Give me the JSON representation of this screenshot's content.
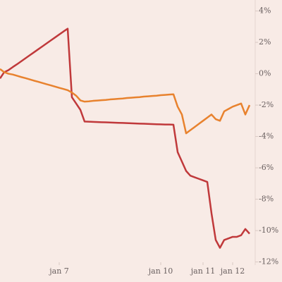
{
  "chart_data": {
    "type": "line",
    "categories": [
      null,
      null,
      null,
      null,
      null,
      null,
      null,
      null,
      null,
      null,
      null,
      null,
      null,
      null,
      "jan 7",
      null,
      null,
      null,
      null,
      null,
      null,
      null,
      null,
      null,
      null,
      null,
      null,
      null,
      null,
      null,
      null,
      null,
      null,
      null,
      null,
      null,
      null,
      null,
      "jan 10",
      null,
      null,
      null,
      null,
      null,
      null,
      null,
      null,
      null,
      "jan 11",
      null,
      null,
      null,
      null,
      null,
      null,
      "jan 12",
      null,
      null,
      null,
      null,
      null
    ],
    "series": [
      {
        "color": "#c0393b",
        "values": [
          -0.3,
          0.1,
          0.23,
          0.42,
          0.6,
          0.79,
          0.98,
          1.17,
          1.36,
          1.55,
          1.74,
          1.93,
          2.12,
          2.31,
          2.5,
          2.69,
          2.87,
          -1.5,
          -1.9,
          -2.3,
          -3.05,
          -3.06,
          -3.07,
          -3.08,
          -3.09,
          -3.1,
          -3.11,
          -3.12,
          -3.13,
          -3.14,
          -3.15,
          -3.16,
          -3.17,
          -3.18,
          -3.19,
          -3.2,
          -3.21,
          -3.22,
          -3.23,
          -3.24,
          -3.24,
          -3.25,
          -5.0,
          -5.6,
          -6.2,
          -6.5,
          -6.6,
          -6.7,
          -6.8,
          -6.9,
          -8.9,
          -10.6,
          -11.1,
          -10.6,
          -10.5,
          -10.4,
          -10.4,
          -10.3,
          -9.9,
          -10.2,
          null
        ]
      },
      {
        "color": "#e8822e",
        "values": [
          0.3,
          0.1,
          0.0,
          -0.05,
          -0.13,
          -0.21,
          -0.28,
          -0.36,
          -0.44,
          -0.51,
          -0.59,
          -0.67,
          -0.74,
          -0.82,
          -0.9,
          -0.97,
          -1.05,
          -1.2,
          -1.4,
          -1.7,
          -1.78,
          -1.76,
          -1.73,
          -1.71,
          -1.69,
          -1.67,
          -1.64,
          -1.62,
          -1.6,
          -1.58,
          -1.55,
          -1.53,
          -1.51,
          -1.49,
          -1.46,
          -1.44,
          -1.42,
          -1.4,
          -1.37,
          -1.35,
          -1.33,
          -1.31,
          -2.1,
          -2.6,
          -3.8,
          -3.6,
          -3.4,
          -3.2,
          -3.0,
          -2.8,
          -2.6,
          -2.9,
          -3.0,
          -2.4,
          -2.25,
          -2.1,
          -2.0,
          -1.9,
          -2.6,
          -2.0,
          null
        ]
      }
    ],
    "ylim": [
      -12.2,
      4.7
    ],
    "yticks": [
      {
        "value": 4,
        "label": "4%"
      },
      {
        "value": 2,
        "label": "2%"
      },
      {
        "value": 0,
        "label": "0%"
      },
      {
        "value": -2,
        "label": "-2%"
      },
      {
        "value": -4,
        "label": "-4%"
      },
      {
        "value": -6,
        "label": "-6%"
      },
      {
        "value": -8,
        "label": "-8%"
      },
      {
        "value": -10,
        "label": "-10%"
      },
      {
        "value": -12,
        "label": "-12%"
      }
    ],
    "grid": false
  }
}
